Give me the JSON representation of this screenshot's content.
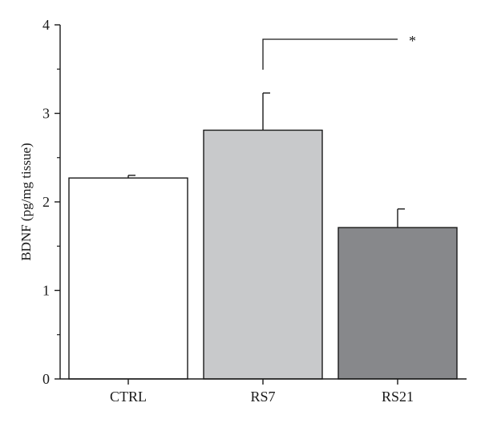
{
  "chart_data": {
    "type": "bar",
    "title": "",
    "xlabel": "",
    "ylabel": "BDNF (pg/mg tissue)",
    "ylim": [
      0,
      4
    ],
    "yticks": [
      0,
      1,
      2,
      3,
      4
    ],
    "categories": [
      "CTRL",
      "RS7",
      "RS21"
    ],
    "values": [
      2.27,
      2.81,
      1.71
    ],
    "errors": [
      0.03,
      0.42,
      0.21
    ],
    "bar_colors": [
      "#ffffff",
      "#c8c9cb",
      "#87888b"
    ],
    "grid": false,
    "legend": "none",
    "significance": [
      {
        "from": "RS7",
        "to": "RS21",
        "label": "*"
      }
    ]
  }
}
